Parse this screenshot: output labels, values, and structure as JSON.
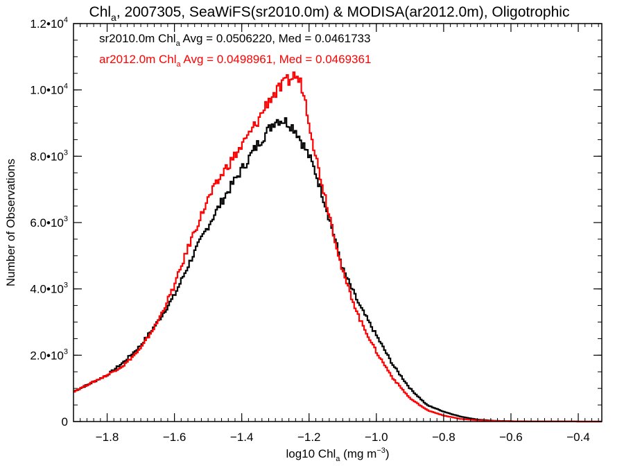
{
  "chart_data": {
    "type": "line",
    "title_parts": {
      "pre": "Chl",
      "sub": "a",
      "post": ", 2007305, SeaWiFS(sr2010.0m) & MODISA(ar2012.0m), Oligotrophic"
    },
    "xlabel_parts": {
      "pre": "log10 Chl",
      "sub": "a",
      "mid": " (mg m",
      "sup": "-3",
      "post": ")"
    },
    "ylabel": "Number of Observations",
    "xlim": [
      -1.9,
      -0.33
    ],
    "ylim": [
      0,
      12000
    ],
    "x_ticks": [
      {
        "value": -1.8,
        "label": "−1.8"
      },
      {
        "value": -1.6,
        "label": "−1.6"
      },
      {
        "value": -1.4,
        "label": "−1.4"
      },
      {
        "value": -1.2,
        "label": "−1.2"
      },
      {
        "value": -1.0,
        "label": "−1.0"
      },
      {
        "value": -0.8,
        "label": "−0.8"
      },
      {
        "value": -0.6,
        "label": "−0.6"
      },
      {
        "value": -0.4,
        "label": "−0.4"
      }
    ],
    "y_ticks": [
      {
        "value": 0,
        "label": "0",
        "exp": ""
      },
      {
        "value": 2000,
        "label": "2.0•10",
        "exp": "3"
      },
      {
        "value": 4000,
        "label": "4.0•10",
        "exp": "3"
      },
      {
        "value": 6000,
        "label": "6.0•10",
        "exp": "3"
      },
      {
        "value": 8000,
        "label": "8.0•10",
        "exp": "3"
      },
      {
        "value": 10000,
        "label": "1.0•10",
        "exp": "4"
      },
      {
        "value": 12000,
        "label": "1.2•10",
        "exp": "4"
      }
    ],
    "annotations": [
      {
        "pre": "sr2010.0m Chl",
        "sub": "a",
        "post": " Avg = 0.0506220, Med = 0.0461733",
        "color": "#000000"
      },
      {
        "pre": "ar2012.0m Chl",
        "sub": "a",
        "post": " Avg = 0.0498961, Med = 0.0469361",
        "color": "#ff0000"
      }
    ],
    "series": [
      {
        "color": "#000000",
        "x": [
          -1.9,
          -1.85,
          -1.8,
          -1.75,
          -1.7,
          -1.65,
          -1.6,
          -1.55,
          -1.5,
          -1.45,
          -1.4,
          -1.35,
          -1.32,
          -1.3,
          -1.28,
          -1.26,
          -1.24,
          -1.22,
          -1.2,
          -1.18,
          -1.15,
          -1.12,
          -1.1,
          -1.05,
          -1.0,
          -0.95,
          -0.9,
          -0.85,
          -0.8,
          -0.75,
          -0.7,
          -0.65,
          -0.6,
          -0.55,
          -0.5,
          -0.45,
          -0.4,
          -0.33
        ],
        "y": [
          900,
          1150,
          1400,
          1800,
          2300,
          3000,
          3800,
          4900,
          5900,
          6800,
          7600,
          8400,
          8800,
          9100,
          9100,
          9000,
          8800,
          8400,
          8000,
          7500,
          6500,
          5400,
          4600,
          3500,
          2600,
          1700,
          1000,
          500,
          300,
          150,
          60,
          25,
          10,
          5,
          3,
          2,
          1,
          0
        ]
      },
      {
        "color": "#ff0000",
        "x": [
          -1.9,
          -1.85,
          -1.8,
          -1.75,
          -1.7,
          -1.65,
          -1.6,
          -1.55,
          -1.5,
          -1.45,
          -1.4,
          -1.35,
          -1.32,
          -1.3,
          -1.28,
          -1.26,
          -1.24,
          -1.22,
          -1.2,
          -1.18,
          -1.15,
          -1.12,
          -1.1,
          -1.05,
          -1.0,
          -0.95,
          -0.9,
          -0.85,
          -0.8,
          -0.75,
          -0.7,
          -0.65,
          -0.6,
          -0.55,
          -0.5,
          -0.45,
          -0.4,
          -0.33
        ],
        "y": [
          900,
          1150,
          1400,
          1700,
          2200,
          3000,
          4100,
          5500,
          6700,
          7600,
          8300,
          9100,
          9700,
          9900,
          10100,
          10300,
          10450,
          10100,
          9100,
          8000,
          6700,
          5400,
          4500,
          3100,
          2100,
          1300,
          700,
          350,
          180,
          80,
          40,
          20,
          10,
          5,
          3,
          2,
          1,
          0
        ]
      }
    ]
  }
}
